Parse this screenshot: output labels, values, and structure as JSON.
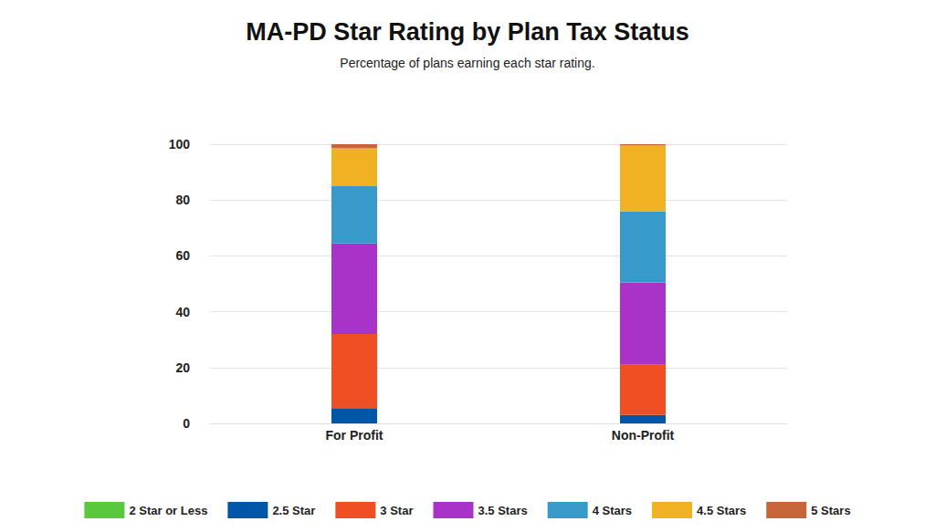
{
  "chart_data": {
    "type": "bar",
    "title": "MA-PD Star Rating by Plan Tax Status",
    "subtitle": "Percentage of plans earning each star rating.",
    "categories": [
      "For Profit",
      "Non-Profit"
    ],
    "series": [
      {
        "name": "2 Star or Less",
        "color": "#5ac83c",
        "values": [
          0,
          0
        ]
      },
      {
        "name": "2.5 Star",
        "color": "#0057a8",
        "values": [
          5.5,
          3
        ]
      },
      {
        "name": "3 Star",
        "color": "#f04e23",
        "values": [
          26.5,
          18
        ]
      },
      {
        "name": "3.5 Stars",
        "color": "#a932c9",
        "values": [
          32.5,
          29.5
        ]
      },
      {
        "name": "4 Stars",
        "color": "#379acb",
        "values": [
          20.5,
          25.5
        ]
      },
      {
        "name": "4.5 Stars",
        "color": "#f0b223",
        "values": [
          13.5,
          23.5
        ]
      },
      {
        "name": "5 Stars",
        "color": "#c8643a",
        "values": [
          1.5,
          0.5
        ]
      }
    ],
    "ylim": [
      0,
      100
    ],
    "yticks": [
      0,
      20,
      40,
      60,
      80,
      100
    ],
    "stacked": true,
    "grid": true,
    "legend": "bottom"
  }
}
